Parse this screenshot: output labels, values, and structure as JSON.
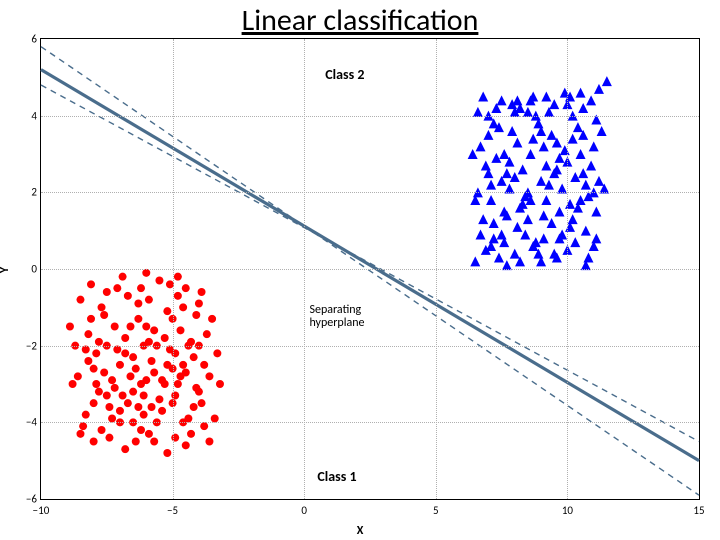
{
  "title": "Linear classification",
  "chart": {
    "type": "scatter",
    "xlim": [
      -10,
      15
    ],
    "ylim": [
      -6,
      6
    ],
    "xticks": [
      -10,
      -5,
      0,
      5,
      10,
      15
    ],
    "yticks": [
      -6,
      -4,
      -2,
      0,
      2,
      4,
      6
    ],
    "xlabel": "X",
    "ylabel": "Y",
    "label_fontsize": 12,
    "tick_fontsize": 11,
    "background_color": "#ffffff",
    "grid_color": "#b0b0b0",
    "grid_style": "dotted",
    "annotations": {
      "class1_label": "Class 1",
      "class1_pos": [
        0.5,
        -5.2
      ],
      "class2_label": "Class 2",
      "class2_pos": [
        0.8,
        5.3
      ],
      "sep_label": "Separating\nhyperplane",
      "sep_pos": [
        0.2,
        -0.9
      ]
    },
    "lines": [
      {
        "p1": [
          -10,
          5.2
        ],
        "p2": [
          15,
          -5.0
        ],
        "color": "#4a6d8c",
        "width": 3.2,
        "dash": null
      },
      {
        "p1": [
          -10,
          5.8
        ],
        "p2": [
          15,
          -5.9
        ],
        "color": "#4a6d8c",
        "width": 1.4,
        "dash": "6,5"
      },
      {
        "p1": [
          -10,
          4.8
        ],
        "p2": [
          15,
          -4.5
        ],
        "color": "#4a6d8c",
        "width": 1.4,
        "dash": "6,5"
      }
    ],
    "class1": {
      "marker": "circle",
      "color": "#ff0000",
      "size": 4,
      "points": [
        [
          -8.5,
          -0.8
        ],
        [
          -8.2,
          -1.7
        ],
        [
          -8.0,
          -2.6
        ],
        [
          -7.8,
          -3.2
        ],
        [
          -7.6,
          -1.2
        ],
        [
          -7.5,
          -2.0
        ],
        [
          -7.3,
          -2.9
        ],
        [
          -7.1,
          -0.5
        ],
        [
          -7.0,
          -4.0
        ],
        [
          -6.8,
          -1.8
        ],
        [
          -6.7,
          -3.5
        ],
        [
          -6.5,
          -2.3
        ],
        [
          -6.3,
          -0.9
        ],
        [
          -6.2,
          -3.0
        ],
        [
          -6.0,
          -1.5
        ],
        [
          -5.9,
          -4.3
        ],
        [
          -5.7,
          -2.7
        ],
        [
          -5.5,
          -0.3
        ],
        [
          -5.4,
          -3.7
        ],
        [
          -5.2,
          -1.1
        ],
        [
          -5.1,
          -2.1
        ],
        [
          -4.9,
          -3.3
        ],
        [
          -4.8,
          -0.7
        ],
        [
          -4.6,
          -2.5
        ],
        [
          -4.5,
          -4.6
        ],
        [
          -4.3,
          -1.9
        ],
        [
          -4.1,
          -3.1
        ],
        [
          -4.0,
          -2.0
        ],
        [
          -3.8,
          -4.1
        ],
        [
          -3.6,
          -2.8
        ],
        [
          -3.5,
          -1.3
        ],
        [
          -8.3,
          -3.8
        ],
        [
          -7.9,
          -2.2
        ],
        [
          -7.4,
          -3.6
        ],
        [
          -7.2,
          -1.5
        ],
        [
          -6.9,
          -0.2
        ],
        [
          -6.6,
          -2.8
        ],
        [
          -6.4,
          -4.5
        ],
        [
          -6.1,
          -3.8
        ],
        [
          -5.8,
          -2.4
        ],
        [
          -5.6,
          -4.0
        ],
        [
          -5.3,
          -3.0
        ],
        [
          -5.0,
          -2.6
        ],
        [
          -4.7,
          -1.6
        ],
        [
          -4.4,
          -3.9
        ],
        [
          -4.2,
          -2.3
        ],
        [
          -3.9,
          -3.5
        ],
        [
          -3.7,
          -1.7
        ],
        [
          -8.7,
          -2.0
        ],
        [
          -8.1,
          -0.4
        ],
        [
          -7.7,
          -4.2
        ],
        [
          -6.3,
          -1.3
        ],
        [
          -5.9,
          -0.8
        ],
        [
          -4.9,
          -4.4
        ],
        [
          -4.5,
          -0.5
        ],
        [
          -3.4,
          -3.9
        ],
        [
          -3.3,
          -2.2
        ],
        [
          -8.9,
          -1.5
        ],
        [
          -8.4,
          -4.1
        ],
        [
          -6.0,
          -0.1
        ],
        [
          -5.2,
          -4.8
        ],
        [
          -7.0,
          -2.5
        ],
        [
          -6.5,
          -3.2
        ],
        [
          -5.7,
          -1.6
        ],
        [
          -4.8,
          -3.0
        ],
        [
          -4.0,
          -0.9
        ],
        [
          -3.8,
          -2.5
        ],
        [
          -6.8,
          -4.7
        ],
        [
          -7.5,
          -0.6
        ],
        [
          -5.4,
          -2.9
        ],
        [
          -8.0,
          -3.5
        ],
        [
          -6.1,
          -2.0
        ],
        [
          -4.3,
          -4.3
        ],
        [
          -7.3,
          -3.9
        ],
        [
          -5.0,
          -1.3
        ],
        [
          -6.7,
          -0.7
        ],
        [
          -4.6,
          -4.0
        ],
        [
          -8.6,
          -2.8
        ],
        [
          -5.5,
          -3.4
        ],
        [
          -7.1,
          -2.1
        ],
        [
          -4.1,
          -1.2
        ],
        [
          -6.4,
          -2.6
        ],
        [
          -5.8,
          -3.6
        ],
        [
          -7.6,
          -2.7
        ],
        [
          -4.7,
          -2.8
        ],
        [
          -6.2,
          -4.2
        ],
        [
          -8.2,
          -2.4
        ],
        [
          -5.1,
          -0.4
        ],
        [
          -7.8,
          -1.9
        ],
        [
          -4.4,
          -2.0
        ],
        [
          -6.9,
          -3.3
        ],
        [
          -5.3,
          -1.8
        ],
        [
          -7.4,
          -4.4
        ],
        [
          -4.9,
          -2.2
        ],
        [
          -6.0,
          -2.9
        ],
        [
          -8.1,
          -1.3
        ],
        [
          -5.6,
          -2.0
        ],
        [
          -7.2,
          -3.1
        ],
        [
          -4.2,
          -3.6
        ],
        [
          -6.6,
          -1.5
        ],
        [
          -8.8,
          -3.0
        ],
        [
          -5.7,
          -4.5
        ],
        [
          -4.0,
          -3.2
        ],
        [
          -7.9,
          -3.0
        ],
        [
          -6.3,
          -3.6
        ],
        [
          -5.0,
          -3.5
        ],
        [
          -3.6,
          -4.5
        ],
        [
          -8.5,
          -4.3
        ],
        [
          -6.8,
          -2.2
        ],
        [
          -4.5,
          -2.7
        ],
        [
          -7.5,
          -3.3
        ],
        [
          -5.9,
          -1.9
        ],
        [
          -3.9,
          -0.6
        ],
        [
          -6.1,
          -3.3
        ],
        [
          -8.3,
          -2.1
        ],
        [
          -5.2,
          -2.5
        ],
        [
          -7.0,
          -3.7
        ],
        [
          -4.6,
          -1.0
        ],
        [
          -6.5,
          -4.0
        ],
        [
          -8.0,
          -4.5
        ],
        [
          -3.2,
          -3.0
        ],
        [
          -4.8,
          -0.2
        ],
        [
          -6.2,
          -0.5
        ],
        [
          -7.7,
          -1.0
        ]
      ]
    },
    "class2": {
      "marker": "triangle",
      "color": "#0000ff",
      "size": 5,
      "points": [
        [
          6.5,
          0.2
        ],
        [
          6.8,
          1.3
        ],
        [
          7.0,
          2.5
        ],
        [
          7.2,
          0.8
        ],
        [
          7.4,
          3.7
        ],
        [
          7.6,
          1.5
        ],
        [
          7.8,
          2.1
        ],
        [
          8.0,
          0.4
        ],
        [
          8.2,
          4.2
        ],
        [
          8.4,
          1.9
        ],
        [
          8.6,
          3.0
        ],
        [
          8.8,
          0.7
        ],
        [
          9.0,
          2.3
        ],
        [
          9.2,
          4.5
        ],
        [
          9.4,
          1.2
        ],
        [
          9.6,
          3.3
        ],
        [
          9.8,
          0.9
        ],
        [
          10.0,
          2.8
        ],
        [
          10.2,
          4.0
        ],
        [
          10.4,
          1.6
        ],
        [
          10.6,
          3.5
        ],
        [
          10.8,
          0.3
        ],
        [
          11.0,
          2.0
        ],
        [
          11.2,
          4.7
        ],
        [
          6.7,
          3.2
        ],
        [
          6.9,
          0.5
        ],
        [
          7.1,
          1.8
        ],
        [
          7.3,
          2.9
        ],
        [
          7.5,
          4.4
        ],
        [
          7.7,
          0.1
        ],
        [
          7.9,
          3.6
        ],
        [
          8.1,
          1.1
        ],
        [
          8.3,
          2.6
        ],
        [
          8.5,
          4.1
        ],
        [
          8.7,
          0.6
        ],
        [
          8.9,
          3.8
        ],
        [
          9.1,
          1.4
        ],
        [
          9.3,
          2.2
        ],
        [
          9.5,
          4.3
        ],
        [
          9.7,
          0.8
        ],
        [
          9.9,
          3.1
        ],
        [
          10.1,
          1.7
        ],
        [
          10.3,
          2.4
        ],
        [
          10.5,
          4.6
        ],
        [
          10.7,
          1.0
        ],
        [
          10.9,
          2.7
        ],
        [
          11.1,
          3.9
        ],
        [
          6.6,
          2.0
        ],
        [
          7.0,
          4.0
        ],
        [
          7.4,
          0.3
        ],
        [
          7.8,
          2.8
        ],
        [
          8.2,
          1.6
        ],
        [
          8.6,
          4.4
        ],
        [
          9.0,
          0.2
        ],
        [
          9.4,
          3.5
        ],
        [
          9.8,
          2.1
        ],
        [
          10.2,
          1.3
        ],
        [
          10.6,
          4.2
        ],
        [
          11.0,
          0.6
        ],
        [
          6.8,
          4.5
        ],
        [
          7.2,
          1.2
        ],
        [
          7.6,
          3.0
        ],
        [
          8.0,
          2.4
        ],
        [
          8.4,
          0.9
        ],
        [
          8.8,
          4.0
        ],
        [
          9.2,
          1.8
        ],
        [
          9.6,
          2.6
        ],
        [
          10.0,
          0.5
        ],
        [
          10.4,
          3.7
        ],
        [
          10.8,
          1.9
        ],
        [
          6.9,
          2.7
        ],
        [
          7.3,
          4.2
        ],
        [
          7.7,
          1.4
        ],
        [
          8.1,
          3.3
        ],
        [
          8.5,
          2.0
        ],
        [
          8.9,
          0.4
        ],
        [
          9.3,
          4.1
        ],
        [
          9.7,
          2.9
        ],
        [
          10.1,
          1.1
        ],
        [
          10.5,
          3.0
        ],
        [
          10.9,
          4.4
        ],
        [
          7.1,
          0.6
        ],
        [
          7.5,
          2.3
        ],
        [
          7.9,
          4.3
        ],
        [
          8.3,
          1.7
        ],
        [
          8.7,
          3.4
        ],
        [
          9.1,
          0.8
        ],
        [
          9.5,
          2.5
        ],
        [
          9.9,
          4.6
        ],
        [
          10.3,
          0.7
        ],
        [
          10.7,
          2.2
        ],
        [
          11.1,
          1.5
        ],
        [
          6.5,
          1.8
        ],
        [
          7.0,
          3.5
        ],
        [
          7.5,
          0.9
        ],
        [
          8.0,
          4.1
        ],
        [
          8.5,
          1.3
        ],
        [
          9.0,
          3.6
        ],
        [
          9.5,
          0.4
        ],
        [
          10.0,
          4.3
        ],
        [
          10.5,
          1.8
        ],
        [
          11.0,
          3.2
        ],
        [
          6.7,
          0.9
        ],
        [
          7.2,
          3.8
        ],
        [
          7.7,
          2.5
        ],
        [
          8.2,
          0.2
        ],
        [
          8.7,
          4.5
        ],
        [
          9.2,
          2.7
        ],
        [
          9.7,
          1.5
        ],
        [
          10.2,
          3.4
        ],
        [
          10.7,
          0.1
        ],
        [
          11.2,
          2.3
        ],
        [
          6.6,
          4.1
        ],
        [
          7.1,
          2.2
        ],
        [
          7.6,
          0.7
        ],
        [
          8.1,
          4.4
        ],
        [
          8.6,
          1.8
        ],
        [
          9.1,
          3.2
        ],
        [
          9.6,
          0.3
        ],
        [
          10.1,
          4.5
        ],
        [
          10.6,
          2.5
        ],
        [
          11.1,
          0.8
        ],
        [
          11.5,
          4.9
        ],
        [
          11.3,
          3.6
        ],
        [
          11.4,
          2.1
        ],
        [
          6.4,
          3.0
        ]
      ]
    }
  }
}
